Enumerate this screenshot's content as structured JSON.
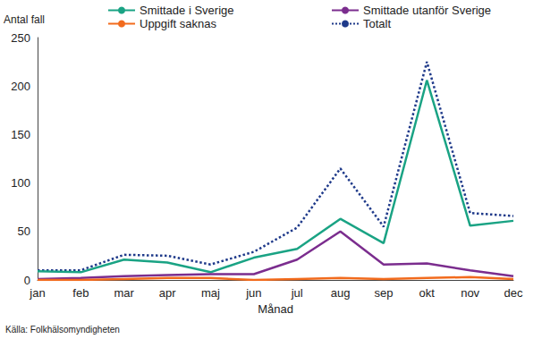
{
  "chart_data": {
    "type": "line",
    "x_label": "Månad",
    "y_label": "Antal fall",
    "annotations": [
      "Källa: Folkhälsomyndigheten"
    ],
    "categories": [
      "jan",
      "feb",
      "mar",
      "apr",
      "maj",
      "jun",
      "jul",
      "aug",
      "sep",
      "okt",
      "nov",
      "dec"
    ],
    "series": [
      {
        "name": "Smittade i Sverige",
        "color": "#1aa384",
        "line_style": "solid",
        "values": [
          9,
          8,
          21,
          18,
          8,
          23,
          32,
          63,
          38,
          206,
          56,
          61
        ]
      },
      {
        "name": "Smittade utanför Sverige",
        "color": "#7b2d8e",
        "line_style": "solid",
        "values": [
          1,
          2,
          4,
          5,
          6,
          6,
          21,
          50,
          16,
          17,
          10,
          4
        ]
      },
      {
        "name": "Uppgift saknas",
        "color": "#f26b1d",
        "line_style": "solid",
        "values": [
          0,
          0,
          1,
          2,
          2,
          0,
          1,
          2,
          1,
          2,
          3,
          1
        ]
      },
      {
        "name": "Totalt",
        "color": "#1f3a8a",
        "line_style": "dotted",
        "values": [
          10,
          10,
          26,
          25,
          16,
          29,
          54,
          115,
          55,
          225,
          69,
          66
        ]
      }
    ],
    "ylim": [
      0,
      250
    ],
    "yticks": [
      0,
      50,
      100,
      150,
      200,
      250
    ],
    "grid": false,
    "legend": "top",
    "marker": "none"
  }
}
